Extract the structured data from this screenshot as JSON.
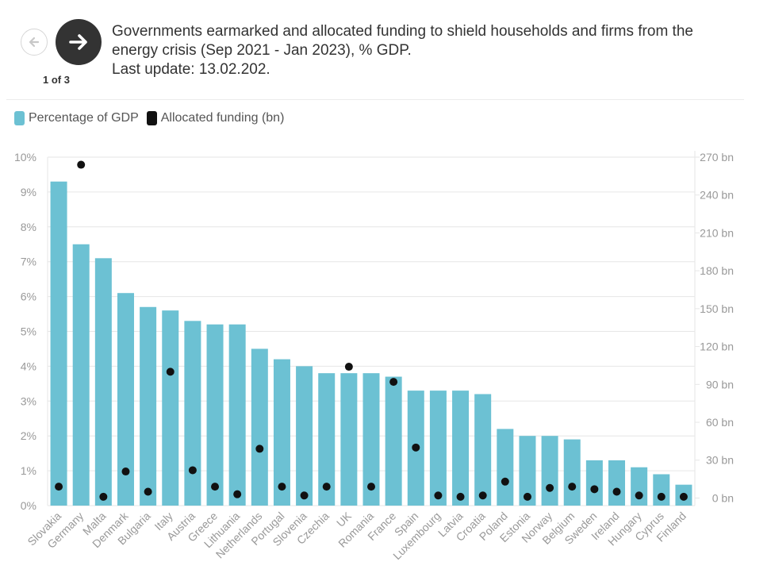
{
  "nav": {
    "counter": "1 of 3",
    "prev_icon": "arrow-left-icon",
    "next_icon": "arrow-right-icon"
  },
  "header": {
    "title_line1": "Governments earmarked and allocated funding to shield households and firms from the",
    "title_line2": "energy crisis (Sep 2021 - Jan 2023), % GDP.",
    "title_line3": "Last update: 13.02.202."
  },
  "colors": {
    "bar": "#6cc1d3",
    "dot": "#111111",
    "grid": "#e6e6e6",
    "axis_text": "#999999"
  },
  "chart_data": {
    "type": "bar",
    "legend": [
      "Percentage of GDP",
      "Allocated funding (bn)"
    ],
    "legend_position": "top-left",
    "categories": [
      "Slovakia",
      "Germany",
      "Malta",
      "Denmark",
      "Bulgaria",
      "Italy",
      "Austria",
      "Greece",
      "Lithuania",
      "Netherlands",
      "Portugal",
      "Slovenia",
      "Czechia",
      "UK",
      "Romania",
      "France",
      "Spain",
      "Luxembourg",
      "Latvia",
      "Croatia",
      "Poland",
      "Estonia",
      "Norway",
      "Belgium",
      "Sweden",
      "Ireland",
      "Hungary",
      "Cyprus",
      "Finland"
    ],
    "series": [
      {
        "name": "Percentage of GDP",
        "type": "bar",
        "axis": "left",
        "values": [
          9.3,
          7.5,
          7.1,
          6.1,
          5.7,
          5.6,
          5.3,
          5.2,
          5.2,
          4.5,
          4.2,
          4.0,
          3.8,
          3.8,
          3.8,
          3.7,
          3.3,
          3.3,
          3.3,
          3.2,
          2.2,
          2.0,
          2.0,
          1.9,
          1.3,
          1.3,
          1.1,
          0.9,
          0.6
        ]
      },
      {
        "name": "Allocated funding (bn)",
        "type": "scatter",
        "axis": "right",
        "values": [
          9,
          264,
          1,
          21,
          5,
          100,
          22,
          9,
          3,
          39,
          9,
          2,
          9,
          104,
          9,
          92,
          40,
          2,
          1,
          2,
          13,
          1,
          8,
          9,
          7,
          5,
          2,
          1,
          1
        ]
      }
    ],
    "y_left": {
      "min": 0,
      "max": 10,
      "ticks": [
        0,
        1,
        2,
        3,
        4,
        5,
        6,
        7,
        8,
        9,
        10
      ],
      "tick_labels": [
        "0%",
        "1%",
        "2%",
        "3%",
        "4%",
        "5%",
        "6%",
        "7%",
        "8%",
        "9%",
        "10%"
      ]
    },
    "y_right": {
      "min": -6,
      "max": 270,
      "ticks": [
        0,
        30,
        60,
        90,
        120,
        150,
        180,
        210,
        240,
        270
      ],
      "tick_labels": [
        "0 bn",
        "30 bn",
        "60 bn",
        "90 bn",
        "120 bn",
        "150 bn",
        "180 bn",
        "210 bn",
        "240 bn",
        "270 bn"
      ]
    },
    "grid": true
  }
}
